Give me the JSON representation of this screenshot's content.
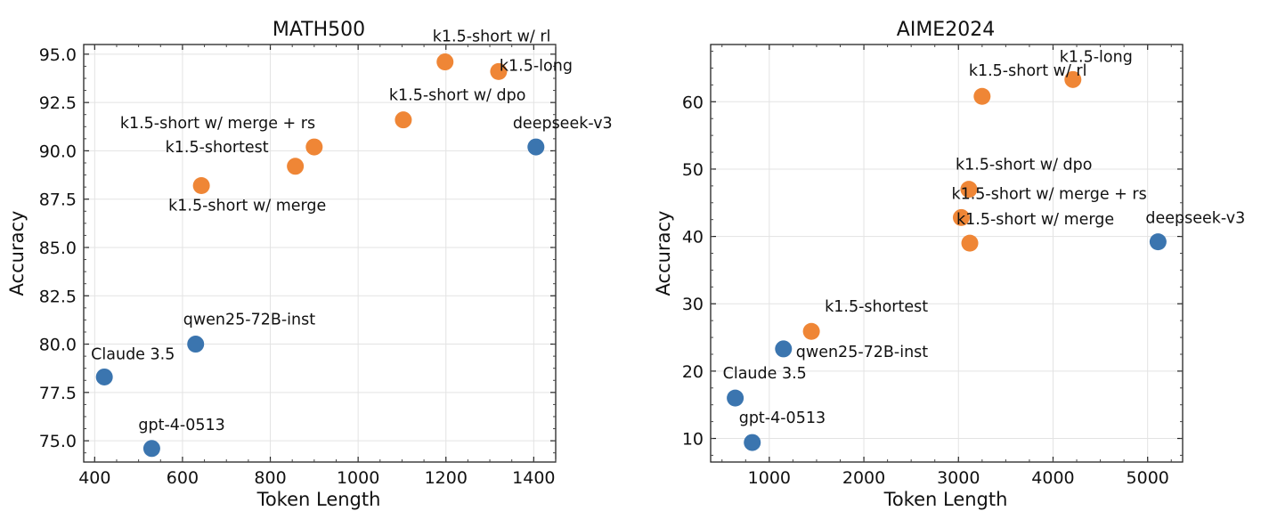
{
  "colors": {
    "short": "#ef8636",
    "baseline": "#3b75af"
  },
  "chart_data": [
    {
      "type": "scatter",
      "title": "MATH500",
      "xlabel": "Token Length",
      "ylabel": "Accuracy",
      "xlim": [
        375,
        1450
      ],
      "ylim": [
        73.9,
        95.5
      ],
      "xticks": [
        400,
        600,
        800,
        1000,
        1200,
        1400
      ],
      "yticks": [
        75.0,
        77.5,
        80.0,
        82.5,
        85.0,
        87.5,
        90.0,
        92.5,
        95.0
      ],
      "grid": true,
      "points": [
        {
          "label": "k1.5-short w/ rl",
          "x": 1198,
          "y": 94.6,
          "group": "short",
          "label_pos": "above-left"
        },
        {
          "label": "k1.5-long",
          "x": 1320,
          "y": 94.1,
          "group": "short",
          "label_pos": "right"
        },
        {
          "label": "k1.5-short w/ dpo",
          "x": 1103,
          "y": 91.6,
          "group": "short",
          "label_pos": "above-right"
        },
        {
          "label": "k1.5-short w/ merge + rs",
          "x": 900,
          "y": 90.2,
          "group": "short",
          "label_pos": "above-right"
        },
        {
          "label": "k1.5-shortest",
          "x": 857,
          "y": 89.2,
          "group": "short",
          "label_pos": "above-left"
        },
        {
          "label": "k1.5-short w/ merge",
          "x": 643,
          "y": 88.2,
          "group": "short",
          "label_pos": "below-right"
        },
        {
          "label": "deepseek-v3",
          "x": 1405,
          "y": 90.2,
          "group": "baseline",
          "label_pos": "above-left"
        },
        {
          "label": "qwen25-72B-inst",
          "x": 630,
          "y": 80.0,
          "group": "baseline",
          "label_pos": "above"
        },
        {
          "label": "Claude 3.5",
          "x": 422,
          "y": 78.3,
          "group": "baseline",
          "label_pos": "above-right"
        },
        {
          "label": "gpt-4-0513",
          "x": 530,
          "y": 74.6,
          "group": "baseline",
          "label_pos": "above-right"
        }
      ]
    },
    {
      "type": "scatter",
      "title": "AIME2024",
      "xlabel": "Token Length",
      "ylabel": "Accuracy",
      "xlim": [
        380,
        5370
      ],
      "ylim": [
        6.5,
        68.5
      ],
      "xticks": [
        1000,
        2000,
        3000,
        4000,
        5000
      ],
      "yticks": [
        10,
        20,
        30,
        40,
        50,
        60
      ],
      "grid": true,
      "points": [
        {
          "label": "k1.5-long",
          "x": 4210,
          "y": 63.3,
          "group": "short",
          "label_pos": "above-right"
        },
        {
          "label": "k1.5-short w/ rl",
          "x": 3250,
          "y": 60.8,
          "group": "short",
          "label_pos": "above-right"
        },
        {
          "label": "k1.5-short w/ dpo",
          "x": 3110,
          "y": 47.0,
          "group": "short",
          "label_pos": "above-right"
        },
        {
          "label": "k1.5-short w/ merge + rs",
          "x": 3030,
          "y": 42.8,
          "group": "short",
          "label_pos": "above-right"
        },
        {
          "label": "k1.5-short w/ merge",
          "x": 3120,
          "y": 39.0,
          "group": "short",
          "label_pos": "above-right"
        },
        {
          "label": "k1.5-shortest",
          "x": 1445,
          "y": 25.9,
          "group": "short",
          "label_pos": "above-right"
        },
        {
          "label": "deepseek-v3",
          "x": 5110,
          "y": 39.2,
          "group": "baseline",
          "label_pos": "above-right"
        },
        {
          "label": "qwen25-72B-inst",
          "x": 1150,
          "y": 23.3,
          "group": "baseline",
          "label_pos": "below-right"
        },
        {
          "label": "Claude 3.5",
          "x": 640,
          "y": 16.0,
          "group": "baseline",
          "label_pos": "above-right"
        },
        {
          "label": "gpt-4-0513",
          "x": 820,
          "y": 9.4,
          "group": "baseline",
          "label_pos": "above-right"
        }
      ]
    }
  ]
}
